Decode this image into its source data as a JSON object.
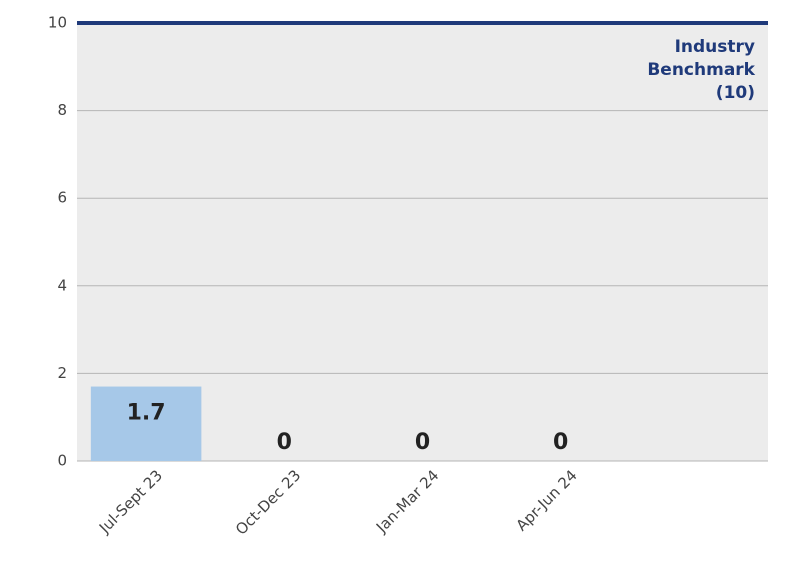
{
  "chart_data": {
    "type": "bar",
    "categories": [
      "Jul-Sept 23",
      "Oct-Dec 23",
      "Jan-Mar 24",
      "Apr-Jun 24",
      null
    ],
    "values": [
      1.7,
      0,
      0,
      0,
      null
    ],
    "color": "#a6c8e8",
    "ylim": [
      0,
      10
    ],
    "yticks": [
      0,
      2,
      4,
      6,
      8,
      10
    ],
    "grid": true,
    "benchmark": {
      "value": 10,
      "label": [
        "Industry",
        "Benchmark",
        "(10)"
      ],
      "color": "#1f3a7a"
    }
  }
}
